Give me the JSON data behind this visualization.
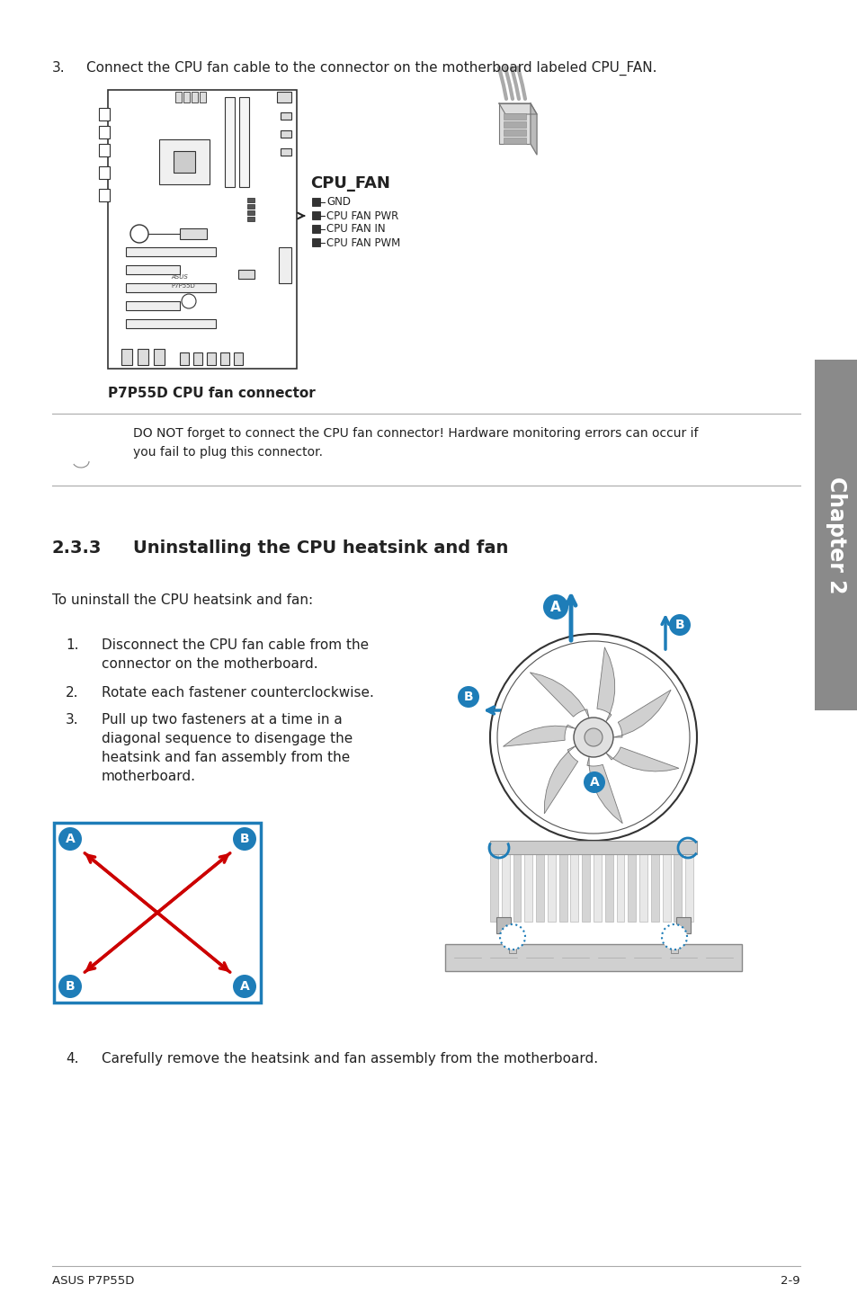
{
  "page_bg": "#ffffff",
  "sidebar_color": "#8a8a8a",
  "sidebar_text": "Chapter 2",
  "footer_left": "ASUS P7P55D",
  "footer_right": "2-9",
  "step3_text_num": "3.",
  "step3_text_body": "Connect the CPU fan cable to the connector on the motherboard labeled CPU_FAN.",
  "caption_text": "P7P55D CPU fan connector",
  "note_text": "DO NOT forget to connect the CPU fan connector! Hardware monitoring errors can occur if\nyou fail to plug this connector.",
  "section_title_num": "2.3.3",
  "section_title_body": "Uninstalling the CPU heatsink and fan",
  "intro_text": "To uninstall the CPU heatsink and fan:",
  "step1": "Disconnect the CPU fan cable from the\nconnector on the motherboard.",
  "step2": "Rotate each fastener counterclockwise.",
  "step3b": "Pull up two fasteners at a time in a\ndiagonal sequence to disengage the\nheatsink and fan assembly from the\nmotherboard.",
  "step4_num": "4.",
  "step4_body": "Carefully remove the heatsink and fan assembly from the motherboard.",
  "cpu_fan_label": "CPU_FAN",
  "connector_labels": [
    "GND",
    "CPU FAN PWR",
    "CPU FAN IN",
    "CPU FAN PWM"
  ],
  "blue_color": "#1e7db8",
  "red_color": "#cc0000",
  "dark": "#222222",
  "gray": "#888888"
}
